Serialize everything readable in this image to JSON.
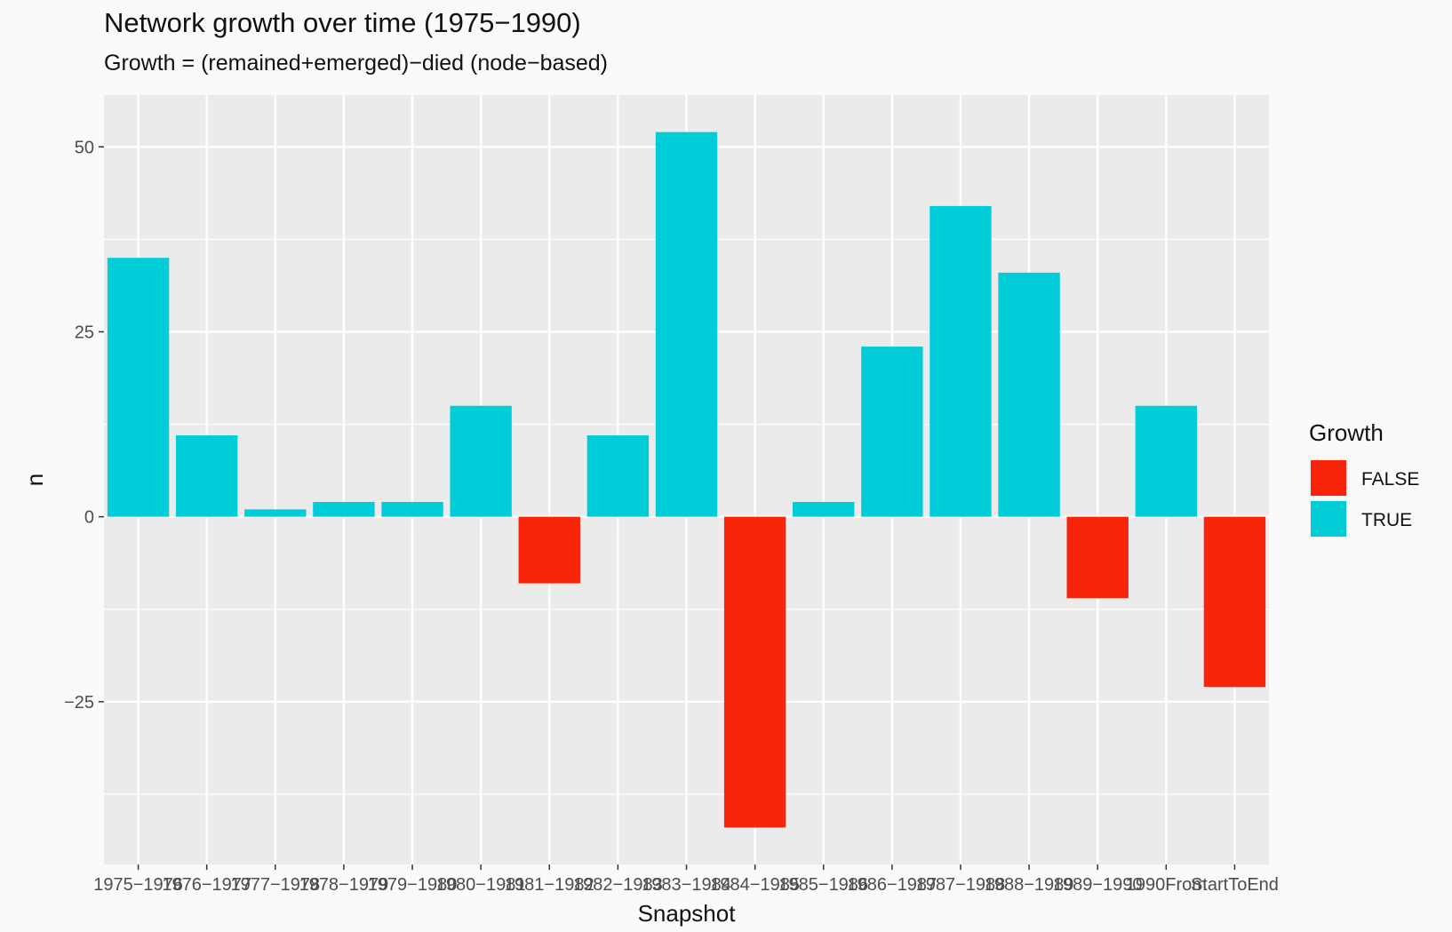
{
  "chart_data": {
    "type": "bar",
    "title": "Network growth over time (1975−1990)",
    "subtitle": "Growth = (remained+emerged)−died (node−based)",
    "xlabel": "Snapshot",
    "ylabel": "n",
    "ylim": [
      -47,
      57
    ],
    "yticks": [
      -25,
      0,
      25,
      50
    ],
    "yticklabels": [
      "−25",
      "0",
      "25",
      "50"
    ],
    "categories": [
      "1975−1976",
      "1976−1977",
      "1977−1978",
      "1978−1979",
      "1979−1980",
      "1980−1981",
      "1981−1982",
      "1982−1983",
      "1983−1984",
      "1984−1985",
      "1985−1986",
      "1986−1987",
      "1987−1988",
      "1988−1989",
      "1989−1990",
      "1990From",
      "StartToEnd"
    ],
    "values": [
      35,
      11,
      1,
      2,
      2,
      15,
      -9,
      11,
      52,
      -42,
      2,
      23,
      42,
      33,
      -11,
      15,
      -23
    ],
    "growth": [
      true,
      true,
      true,
      true,
      true,
      true,
      false,
      true,
      true,
      false,
      true,
      true,
      true,
      true,
      false,
      true,
      false
    ],
    "legend": {
      "title": "Growth",
      "position": "right",
      "entries": [
        {
          "label": "FALSE",
          "color": "#f8250a"
        },
        {
          "label": "TRUE",
          "color": "#00cdd8"
        }
      ]
    },
    "panel_background": "#ebebeb",
    "grid": true
  }
}
